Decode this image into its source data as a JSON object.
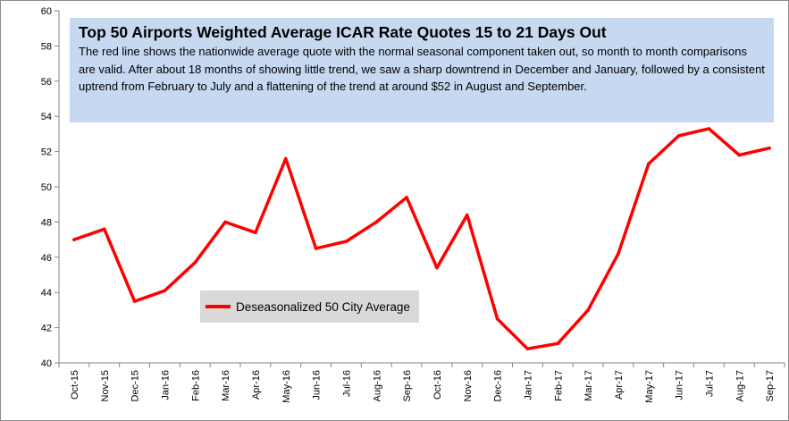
{
  "chart_data": {
    "type": "line",
    "title": "Top 50 Airports Weighted Average ICAR Rate Quotes 15 to 21 Days Out",
    "annotation": "The red line shows the nationwide average quote with the normal seasonal component taken out, so month to month comparisons are valid. After about 18 months of showing little trend, we saw a sharp downtrend in December and January, followed by a consistent uptrend from February to July and a flattening of the trend at around $52 in August and September.",
    "xlabel": "",
    "ylabel": "",
    "categories": [
      "Oct-15",
      "Nov-15",
      "Dec-15",
      "Jan-16",
      "Feb-16",
      "Mar-16",
      "Apr-16",
      "May-16",
      "Jun-16",
      "Jul-16",
      "Aug-16",
      "Sep-16",
      "Oct-16",
      "Nov-16",
      "Dec-16",
      "Jan-17",
      "Feb-17",
      "Mar-17",
      "Apr-17",
      "May-17",
      "Jun-17",
      "Jul-17",
      "Aug-17",
      "Sep-17"
    ],
    "series": [
      {
        "name": "Deseasonalized 50 City Average",
        "color": "#ff0000",
        "values": [
          47.0,
          47.6,
          43.5,
          44.1,
          45.7,
          48.0,
          47.4,
          51.6,
          46.5,
          46.9,
          48.0,
          49.4,
          45.4,
          48.4,
          42.5,
          40.8,
          41.1,
          43.0,
          46.2,
          51.3,
          52.9,
          53.3,
          51.8,
          52.2
        ]
      }
    ],
    "ylim": [
      40,
      60
    ],
    "yticks": [
      40,
      42,
      44,
      46,
      48,
      50,
      52,
      54,
      56,
      58,
      60
    ],
    "grid": false,
    "legend_position": "lower-left-center",
    "colors": {
      "line": "#ff0000",
      "annotation_bg": "#c6d9f1",
      "legend_bg": "#d9d9d9"
    }
  }
}
